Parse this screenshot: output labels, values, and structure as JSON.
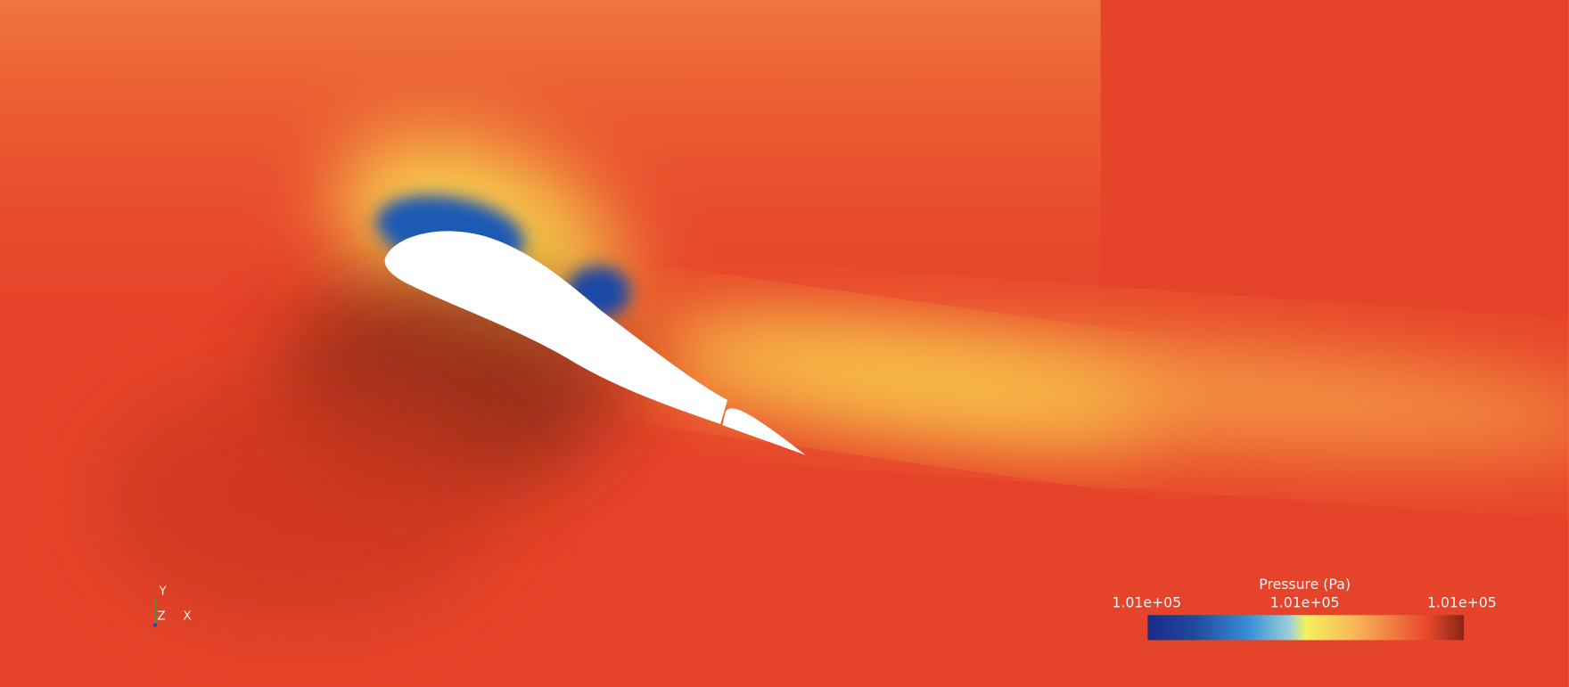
{
  "colorbar": {
    "title": "Pressure (Pa)",
    "ticks": [
      "1.01e+05",
      "1.01e+05",
      "1.01e+05"
    ]
  },
  "axes": {
    "y": "Y",
    "z": "Z",
    "x": "X"
  }
}
